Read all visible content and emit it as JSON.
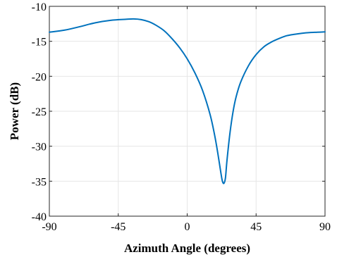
{
  "chart_data": {
    "type": "line",
    "title": "",
    "xlabel": "Azimuth Angle (degrees)",
    "ylabel": "Power (dB)",
    "xlim": [
      -90,
      90
    ],
    "ylim": [
      -40,
      -10
    ],
    "xticks": [
      -90,
      -45,
      0,
      45,
      90
    ],
    "yticks": [
      -40,
      -35,
      -30,
      -25,
      -20,
      -15,
      -10
    ],
    "xtick_labels": [
      "-90",
      "-45",
      "0",
      "45",
      "90"
    ],
    "ytick_labels": [
      "-40",
      "-35",
      "-30",
      "-25",
      "-20",
      "-15",
      "-10"
    ],
    "grid": true,
    "legend": "none",
    "colors": {
      "line": "#0072BD",
      "grid": "#e6e6e6",
      "axis": "#262626"
    },
    "series": [
      {
        "x": [
          -90,
          -80,
          -70,
          -60,
          -50,
          -40,
          -35,
          -30,
          -25,
          -20,
          -15,
          -10,
          -5,
          0,
          5,
          10,
          15,
          18,
          20,
          22,
          23,
          24,
          25,
          26,
          28,
          30,
          32,
          35,
          40,
          45,
          50,
          55,
          60,
          65,
          70,
          75,
          80,
          85,
          90
        ],
        "y": [
          -13.7,
          -13.4,
          -12.9,
          -12.35,
          -12.0,
          -11.85,
          -11.8,
          -11.9,
          -12.2,
          -12.75,
          -13.5,
          -14.6,
          -15.9,
          -17.5,
          -19.5,
          -22.0,
          -25.5,
          -28.5,
          -31.0,
          -33.8,
          -35.0,
          -35.3,
          -34.5,
          -32.0,
          -28.0,
          -25.0,
          -22.9,
          -20.8,
          -18.5,
          -16.9,
          -15.8,
          -15.1,
          -14.6,
          -14.2,
          -14.0,
          -13.85,
          -13.75,
          -13.7,
          -13.65
        ]
      }
    ]
  }
}
